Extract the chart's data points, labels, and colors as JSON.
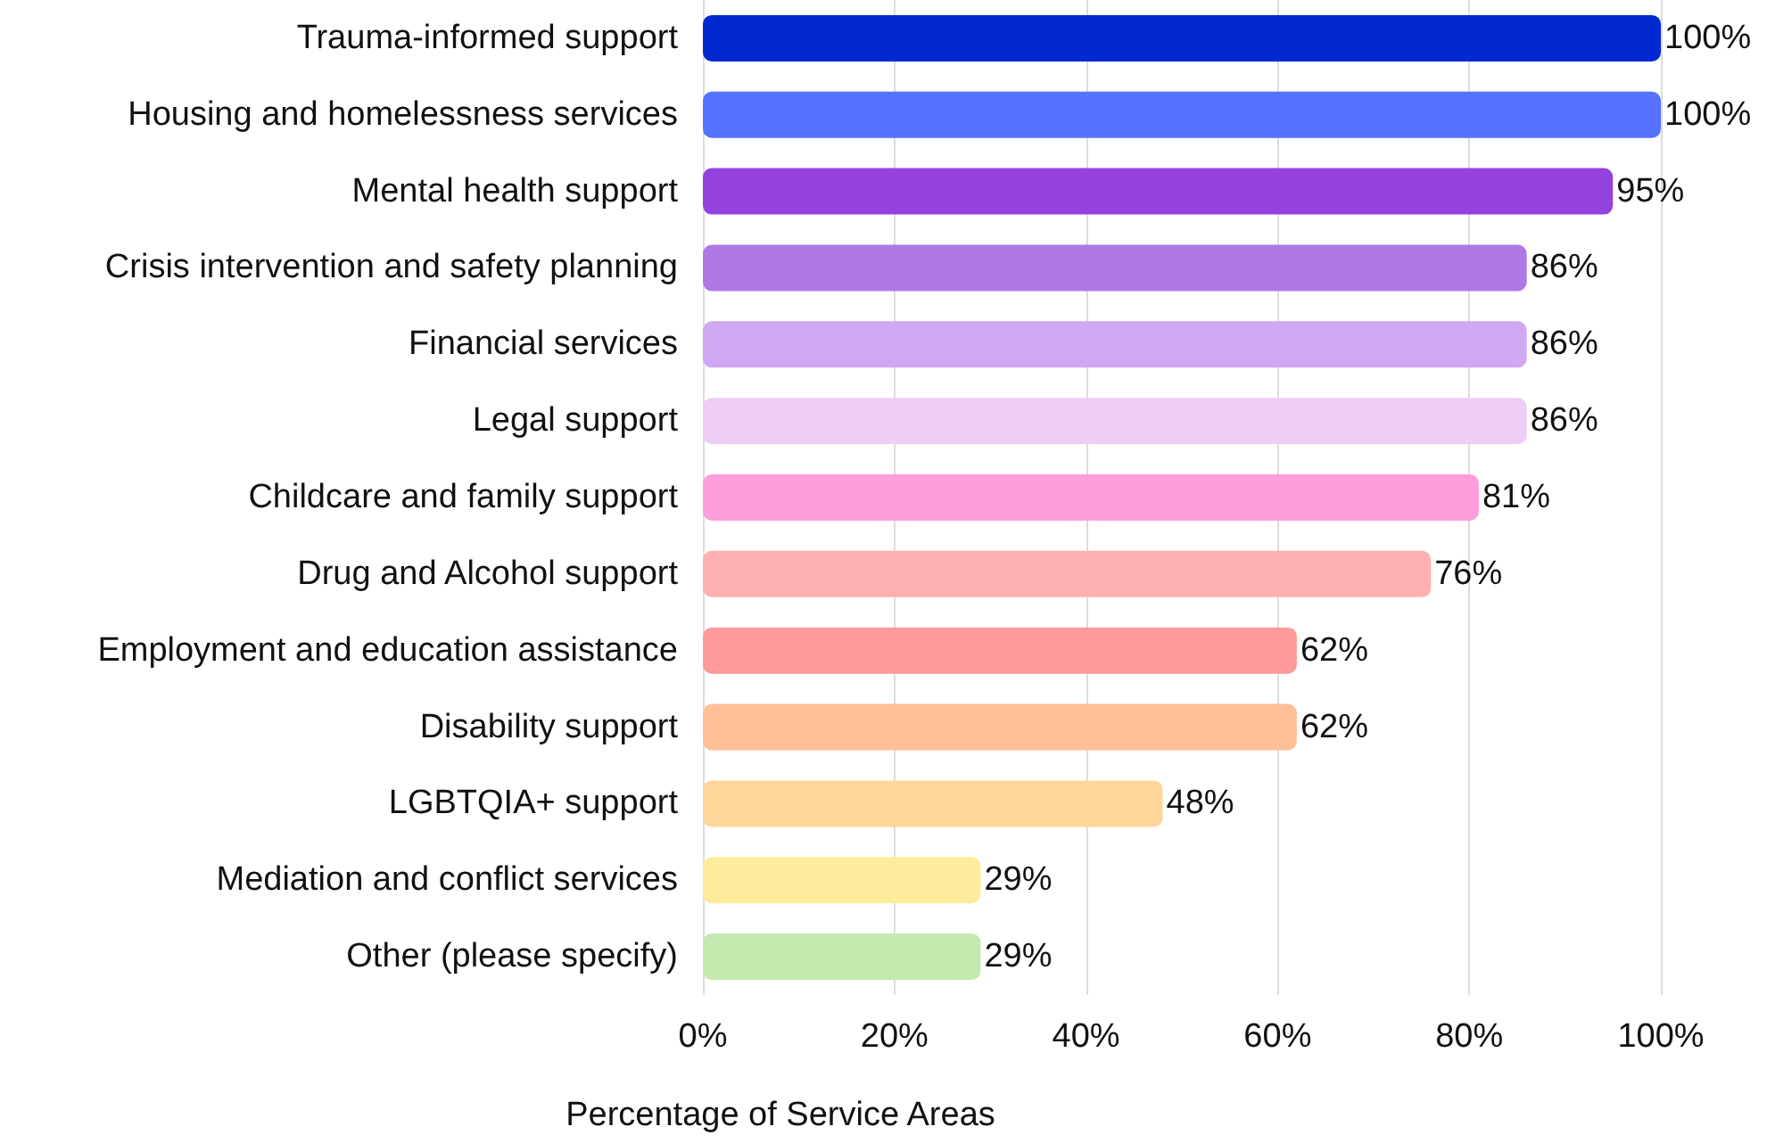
{
  "chart_data": {
    "type": "bar",
    "orientation": "horizontal",
    "xlabel": "Percentage of Service Areas",
    "categories": [
      "Trauma-informed support",
      "Housing and homelessness services",
      "Mental health support",
      "Crisis intervention and safety planning",
      "Financial services",
      "Legal support",
      "Childcare and family support",
      "Drug and Alcohol support",
      "Employment and education assistance",
      "Disability support",
      "LGBTQIA+ support",
      "Mediation and conflict services",
      "Other (please specify)"
    ],
    "values": [
      100,
      100,
      95,
      86,
      86,
      86,
      81,
      76,
      62,
      62,
      48,
      29,
      29
    ],
    "value_labels": [
      "100%",
      "100%",
      "95%",
      "86%",
      "86%",
      "86%",
      "81%",
      "76%",
      "62%",
      "62%",
      "48%",
      "29%",
      "29%"
    ],
    "colors": [
      "#0029d1",
      "#5673ff",
      "#9342dd",
      "#b077e6",
      "#cfa8f1",
      "#efcdf6",
      "#ff9edc",
      "#ffb0b0",
      "#ff9a9a",
      "#ffbf97",
      "#ffd69a",
      "#ffeb9c",
      "#c3ebb0"
    ],
    "xlim": [
      0,
      100
    ],
    "xticks": [
      {
        "value": 0,
        "label": "0%"
      },
      {
        "value": 20,
        "label": "20%"
      },
      {
        "value": 40,
        "label": "40%"
      },
      {
        "value": 60,
        "label": "60%"
      },
      {
        "value": 80,
        "label": "80%"
      },
      {
        "value": 100,
        "label": "100%"
      }
    ],
    "grid": "x"
  }
}
